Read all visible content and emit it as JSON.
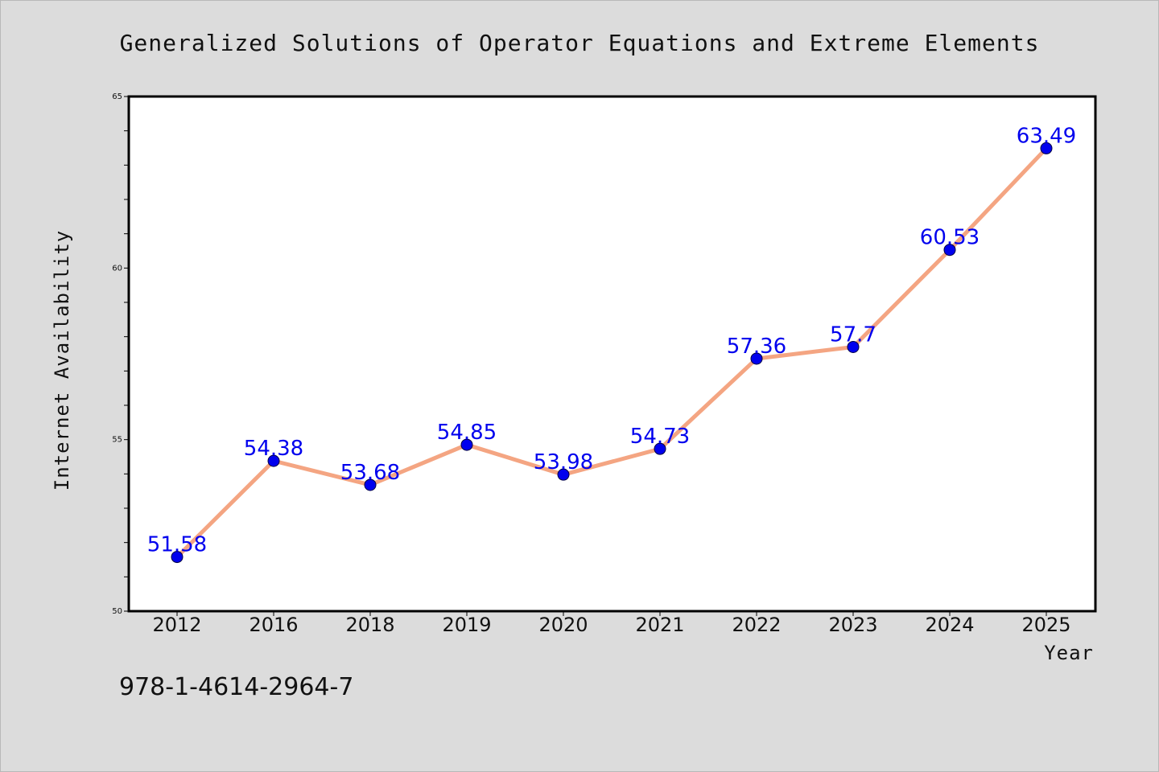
{
  "chart_data": {
    "type": "line",
    "title": "Generalized Solutions of Operator Equations and Extreme Elements",
    "xlabel": "Year",
    "ylabel": "Internet Availability",
    "categories": [
      "2012",
      "2016",
      "2018",
      "2019",
      "2020",
      "2021",
      "2022",
      "2023",
      "2024",
      "2025"
    ],
    "series": [
      {
        "values": [
          51.58,
          54.38,
          53.68,
          54.85,
          53.98,
          54.73,
          57.36,
          57.7,
          60.53,
          63.49
        ],
        "data_labels": [
          "51.58",
          "54.38",
          "53.68",
          "54.85",
          "53.98",
          "54.73",
          "57.36",
          "57.7",
          "60.53",
          "63.49"
        ]
      }
    ],
    "ylim": [
      50,
      65
    ],
    "yticks": [
      50,
      55,
      60,
      65
    ],
    "ytick_labels": [
      "50",
      "55",
      "60",
      "65"
    ],
    "grid": false,
    "colors": {
      "line": "#f4a582",
      "marker": "#0000ee",
      "label": "#0000ee",
      "background": "#dcdcdc",
      "plot_background": "#ffffff"
    }
  },
  "footer": {
    "isbn": "978-1-4614-2964-7"
  }
}
